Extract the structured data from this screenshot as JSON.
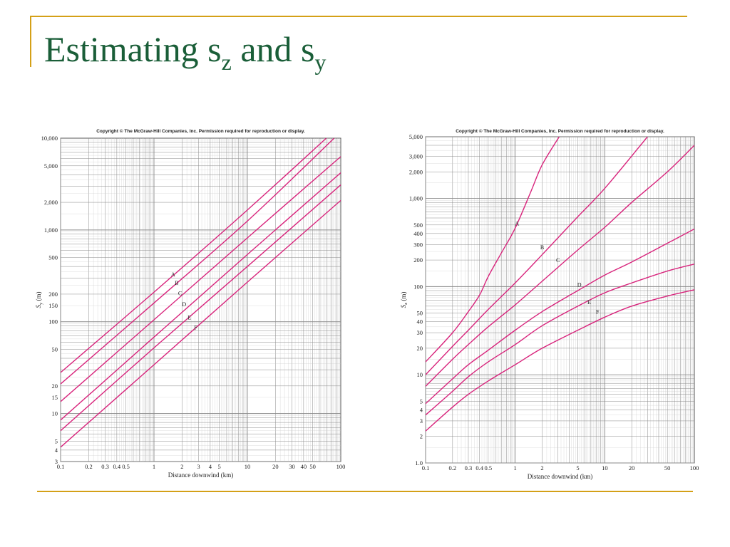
{
  "slide": {
    "title_part1": "Estimating s",
    "title_sub1": "z",
    "title_part2": " and s",
    "title_sub2": "y"
  },
  "colors": {
    "accent": "#d4a017",
    "title": "#1a5e38",
    "curve": "#d8247c",
    "grid": "#8a8a8a"
  },
  "chart_data": [
    {
      "type": "line",
      "copyright": "Copyright © The McGraw-Hill Companies, Inc. Permission required for reproduction or display.",
      "xlabel": "Distance downwind (km)",
      "ylabel": "S_y (m)",
      "ylabel_main": "S",
      "ylabel_sub": "y",
      "ylabel_unit": " (m)",
      "xscale": "log",
      "yscale": "log",
      "xlim": [
        0.1,
        100
      ],
      "ylim": [
        3,
        10000
      ],
      "grid": true,
      "xticks": [
        0.1,
        0.2,
        0.3,
        0.4,
        0.5,
        1,
        2,
        3,
        4,
        5,
        10,
        20,
        30,
        40,
        50,
        100
      ],
      "xticklabels": [
        "0.1",
        "0.2",
        "0.3",
        "0.4",
        "0.5",
        "1",
        "2",
        "3",
        "4",
        "5",
        "10",
        "20",
        "30",
        "40",
        "50",
        "100"
      ],
      "yticks": [
        3,
        4,
        5,
        10,
        15,
        20,
        50,
        100,
        150,
        200,
        500,
        1000,
        2000,
        5000,
        10000
      ],
      "yticklabels": [
        "3",
        "4",
        "5",
        "10",
        "15",
        "20",
        "50",
        "100",
        "150",
        "200",
        "500",
        "1,000",
        "2,000",
        "5,000",
        "10,000"
      ],
      "series": [
        {
          "name": "A",
          "x": [
            0.1,
            1,
            10,
            70
          ],
          "y": [
            28,
            210,
            1650,
            10000
          ],
          "label_at": [
            1.6,
            330
          ]
        },
        {
          "name": "B",
          "x": [
            0.1,
            1,
            10,
            85
          ],
          "y": [
            21,
            160,
            1250,
            10000
          ],
          "label_at": [
            1.75,
            265
          ]
        },
        {
          "name": "C",
          "x": [
            0.1,
            1,
            10,
            100
          ],
          "y": [
            13.5,
            105,
            820,
            6300
          ],
          "label_at": [
            1.9,
            205
          ]
        },
        {
          "name": "D",
          "x": [
            0.1,
            1,
            10,
            100
          ],
          "y": [
            8.5,
            68,
            540,
            4200
          ],
          "label_at": [
            2.1,
            155
          ]
        },
        {
          "name": "E",
          "x": [
            0.1,
            1,
            10,
            100
          ],
          "y": [
            6.5,
            52,
            400,
            3100
          ],
          "label_at": [
            2.4,
            112
          ]
        },
        {
          "name": "F",
          "x": [
            0.1,
            1,
            10,
            100
          ],
          "y": [
            4.3,
            34,
            270,
            2100
          ],
          "label_at": [
            2.8,
            87
          ]
        }
      ]
    },
    {
      "type": "line",
      "copyright": "Copyright © The McGraw-Hill Companies, Inc. Permission required for reproduction or display.",
      "xlabel": "Distance downwind (km)",
      "ylabel": "S_z (m)",
      "ylabel_main": "S",
      "ylabel_sub": "z",
      "ylabel_unit": " (m)",
      "xscale": "log",
      "yscale": "log",
      "xlim": [
        0.1,
        100
      ],
      "ylim": [
        1,
        5000
      ],
      "grid": true,
      "xticks": [
        0.1,
        0.2,
        0.3,
        0.4,
        0.5,
        1,
        2,
        5,
        10,
        20,
        50,
        100
      ],
      "xticklabels": [
        "0.1",
        "0.2",
        "0.3",
        "0.4",
        "0.5",
        "1",
        "2",
        "5",
        "10",
        "20",
        "50",
        "100"
      ],
      "yticks": [
        1,
        2,
        3,
        4,
        5,
        10,
        20,
        30,
        40,
        50,
        100,
        200,
        300,
        400,
        500,
        1000,
        2000,
        3000,
        5000
      ],
      "yticklabels": [
        "1.0",
        "2",
        "3",
        "4",
        "5",
        "10",
        "20",
        "30",
        "40",
        "50",
        "100",
        "200",
        "300",
        "400",
        "500",
        "1,000",
        "2,000",
        "3,000",
        "5,000"
      ],
      "series": [
        {
          "name": "A",
          "x": [
            0.1,
            0.2,
            0.3,
            0.4,
            0.5,
            0.7,
            1,
            1.5,
            2,
            3.1
          ],
          "y": [
            14,
            30,
            52,
            80,
            130,
            240,
            460,
            1200,
            2400,
            5000
          ],
          "label_at": [
            1.05,
            520
          ]
        },
        {
          "name": "B",
          "x": [
            0.1,
            0.2,
            0.3,
            0.5,
            1,
            2,
            5,
            10,
            30
          ],
          "y": [
            10,
            21,
            32,
            55,
            110,
            230,
            620,
            1300,
            5000
          ],
          "label_at": [
            2.0,
            280
          ]
        },
        {
          "name": "C",
          "x": [
            0.1,
            0.2,
            0.3,
            0.5,
            1,
            2,
            5,
            10,
            20,
            50,
            100
          ],
          "y": [
            7.4,
            15,
            22,
            35,
            62,
            115,
            260,
            470,
            900,
            2000,
            4000
          ],
          "label_at": [
            3.0,
            200
          ]
        },
        {
          "name": "D",
          "x": [
            0.1,
            0.2,
            0.3,
            0.5,
            1,
            2,
            5,
            10,
            20,
            50,
            100
          ],
          "y": [
            4.7,
            9,
            13,
            19,
            32,
            52,
            90,
            135,
            190,
            310,
            450
          ],
          "label_at": [
            5.2,
            105
          ]
        },
        {
          "name": "E",
          "x": [
            0.1,
            0.2,
            0.3,
            0.5,
            1,
            2,
            5,
            10,
            20,
            50,
            100
          ],
          "y": [
            3.5,
            6.5,
            9.5,
            14,
            22,
            36,
            60,
            85,
            110,
            150,
            180
          ],
          "label_at": [
            6.7,
            67
          ]
        },
        {
          "name": "F",
          "x": [
            0.1,
            0.2,
            0.3,
            0.5,
            1,
            2,
            5,
            10,
            20,
            50,
            100
          ],
          "y": [
            2.3,
            4.3,
            6,
            8.5,
            13,
            20,
            32,
            45,
            60,
            78,
            92
          ],
          "label_at": [
            8.3,
            52
          ]
        }
      ]
    }
  ]
}
